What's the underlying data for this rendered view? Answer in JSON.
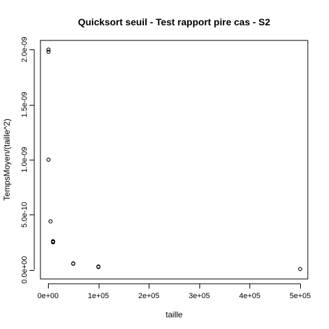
{
  "chart_data": {
    "type": "scatter",
    "title": "Quicksort  seuil - Test rapport pire cas - S2",
    "xlabel": "taille",
    "ylabel": "TempsMoyen/(taille^2)",
    "xlim": [
      -15000,
      515000
    ],
    "ylim": [
      -8.3e-11,
      2.083e-09
    ],
    "x_ticks": [
      {
        "value": 0,
        "label": "0e+00"
      },
      {
        "value": 100000,
        "label": "1e+05"
      },
      {
        "value": 200000,
        "label": "2e+05"
      },
      {
        "value": 300000,
        "label": "3e+05"
      },
      {
        "value": 400000,
        "label": "4e+05"
      },
      {
        "value": 500000,
        "label": "5e+05"
      }
    ],
    "y_ticks": [
      {
        "value": 0,
        "label": "0.0e+00"
      },
      {
        "value": 5e-10,
        "label": "5.0e-10"
      },
      {
        "value": 1e-09,
        "label": "1.0e-09"
      },
      {
        "value": 1.5e-09,
        "label": "1.5e-09"
      },
      {
        "value": 2e-09,
        "label": "2.0e-09"
      }
    ],
    "grid": false,
    "series": [
      {
        "points": [
          {
            "x": 1000,
            "y": 2e-09
          },
          {
            "x": 1000,
            "y": 1.98e-09
          },
          {
            "x": 1000,
            "y": 1e-09
          },
          {
            "x": 5000,
            "y": 4.4e-10
          },
          {
            "x": 10000,
            "y": 2.6e-10
          },
          {
            "x": 10000,
            "y": 2.55e-10
          },
          {
            "x": 10000,
            "y": 2.5e-10
          },
          {
            "x": 50000,
            "y": 5.8e-11
          },
          {
            "x": 50000,
            "y": 5.5e-11
          },
          {
            "x": 100000,
            "y": 3e-11
          },
          {
            "x": 100000,
            "y": 2.6e-11
          },
          {
            "x": 500000,
            "y": 7e-12
          }
        ]
      }
    ]
  }
}
